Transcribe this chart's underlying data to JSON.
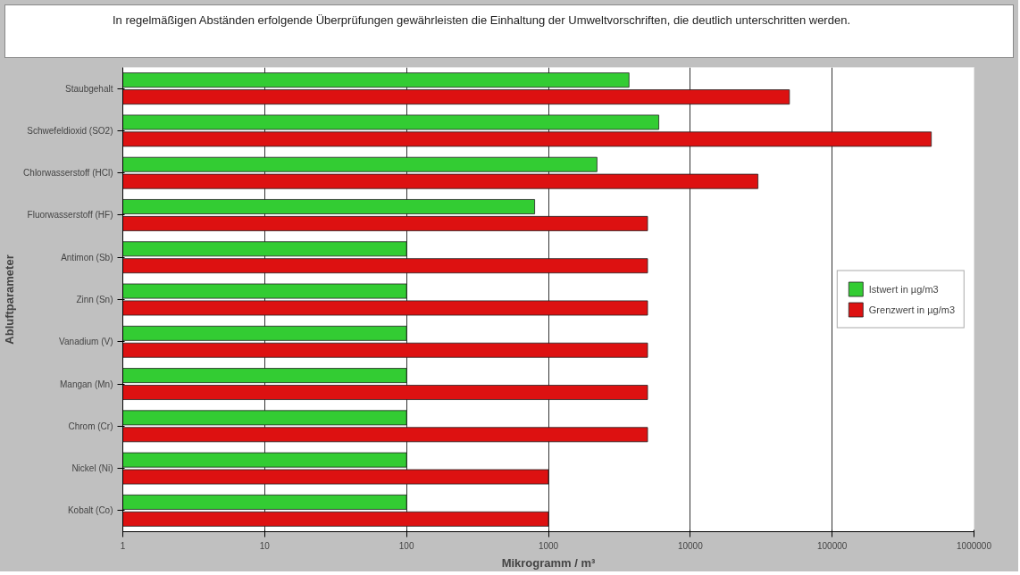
{
  "chart_data": {
    "type": "bar",
    "orientation": "horizontal",
    "title": "In regelmäßigen Abständen erfolgende Überprüfungen gewährleisten die Einhaltung der Umweltvorschriften, die deutlich unterschritten werden.",
    "xlabel": "Mikrogramm / m³",
    "ylabel": "Abluftparameter",
    "categories": [
      "Staubgehalt",
      "Schwefeldioxid (SO2)",
      "Chlorwasserstoff (HCl)",
      "Fluorwasserstoff (HF)",
      "Antimon (Sb)",
      "Zinn (Sn)",
      "Vanadium (V)",
      "Mangan (Mn)",
      "Chrom (Cr)",
      "Nickel (Ni)",
      "Kobalt (Co)"
    ],
    "series": [
      {
        "name": "Istwert in µg/m3",
        "color": "#33cc33",
        "values": [
          3700,
          6000,
          2200,
          800,
          100,
          100,
          100,
          100,
          100,
          100,
          100
        ]
      },
      {
        "name": "Grenzwert in µg/m3",
        "color": "#dd1111",
        "values": [
          50000,
          500000,
          30000,
          5000,
          5000,
          5000,
          5000,
          5000,
          5000,
          1000,
          1000
        ]
      }
    ],
    "log": "x",
    "xlim": [
      1,
      1000000
    ],
    "xticks": [
      1,
      10,
      100,
      1000,
      10000,
      100000,
      1000000
    ],
    "grid": "x",
    "legend": "right"
  }
}
